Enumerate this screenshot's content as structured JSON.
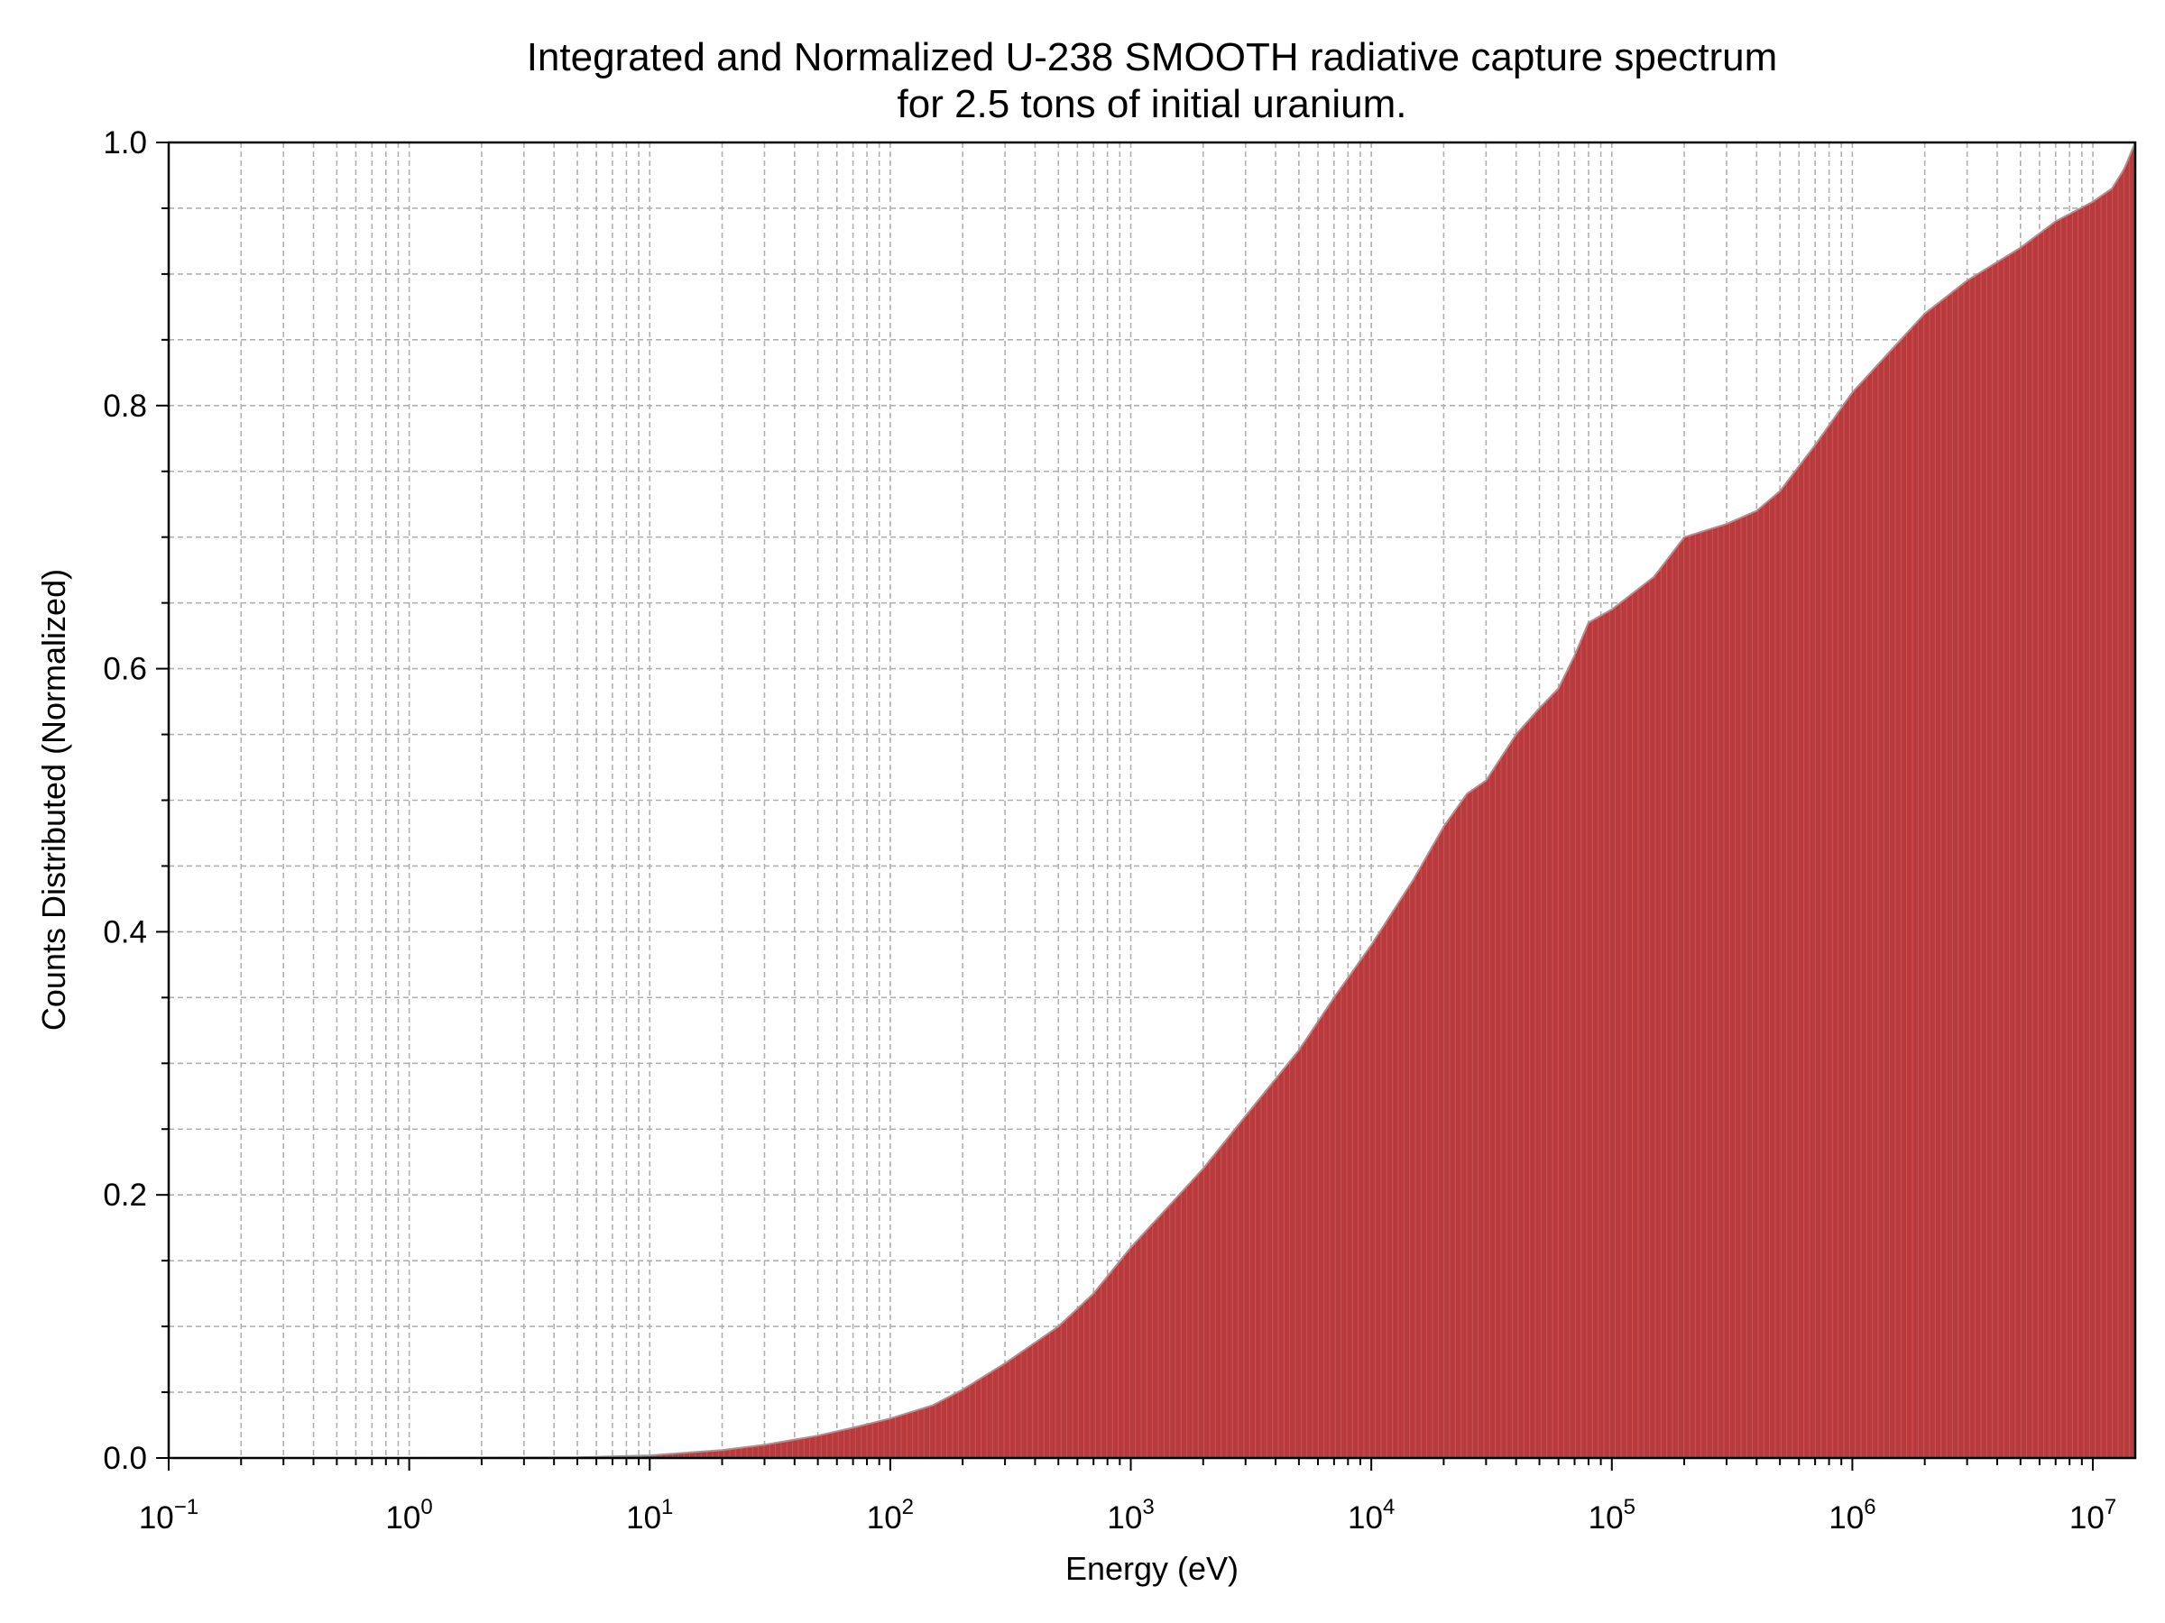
{
  "chart_data": {
    "type": "area",
    "title": [
      "Integrated and Normalized U-238 SMOOTH radiative capture spectrum",
      "for 2.5 tons of initial uranium."
    ],
    "xlabel": "Energy (eV)",
    "ylabel": "Counts Distributed (Normalized)",
    "x_scale": "log",
    "xlim": [
      0.1,
      15000000
    ],
    "ylim": [
      0.0,
      1.0
    ],
    "grid": true,
    "x_ticks": [
      {
        "base": "10",
        "exp": "−1",
        "value": 0.1
      },
      {
        "base": "10",
        "exp": "0",
        "value": 1
      },
      {
        "base": "10",
        "exp": "1",
        "value": 10
      },
      {
        "base": "10",
        "exp": "2",
        "value": 100
      },
      {
        "base": "10",
        "exp": "3",
        "value": 1000
      },
      {
        "base": "10",
        "exp": "4",
        "value": 10000
      },
      {
        "base": "10",
        "exp": "5",
        "value": 100000
      },
      {
        "base": "10",
        "exp": "6",
        "value": 1000000
      },
      {
        "base": "10",
        "exp": "7",
        "value": 10000000
      }
    ],
    "y_ticks": [
      {
        "label": "0.0",
        "value": 0.0
      },
      {
        "label": "0.2",
        "value": 0.2
      },
      {
        "label": "0.4",
        "value": 0.4
      },
      {
        "label": "0.6",
        "value": 0.6
      },
      {
        "label": "0.8",
        "value": 0.8
      },
      {
        "label": "1.0",
        "value": 1.0
      }
    ],
    "fill_color": "#b83a3d",
    "series": [
      {
        "x": [
          0.1,
          1,
          5,
          10,
          20,
          30,
          50,
          70,
          100,
          150,
          200,
          300,
          500,
          700,
          1000,
          2000,
          3000,
          5000,
          7000,
          10000,
          15000,
          20000,
          25000,
          30000,
          40000,
          50000,
          60000,
          70000,
          80000,
          100000,
          150000,
          200000,
          300000,
          400000,
          500000,
          700000,
          1000000,
          2000000,
          3000000,
          5000000,
          7000000,
          10000000,
          12000000,
          13500000,
          15000000
        ],
        "values": [
          0.0,
          0.0,
          0.0005,
          0.002,
          0.006,
          0.01,
          0.017,
          0.023,
          0.03,
          0.04,
          0.052,
          0.072,
          0.1,
          0.125,
          0.16,
          0.22,
          0.26,
          0.31,
          0.35,
          0.39,
          0.44,
          0.48,
          0.505,
          0.515,
          0.55,
          0.57,
          0.585,
          0.61,
          0.635,
          0.645,
          0.67,
          0.7,
          0.71,
          0.72,
          0.735,
          0.77,
          0.81,
          0.87,
          0.895,
          0.92,
          0.94,
          0.955,
          0.965,
          0.98,
          1.0
        ]
      }
    ]
  }
}
